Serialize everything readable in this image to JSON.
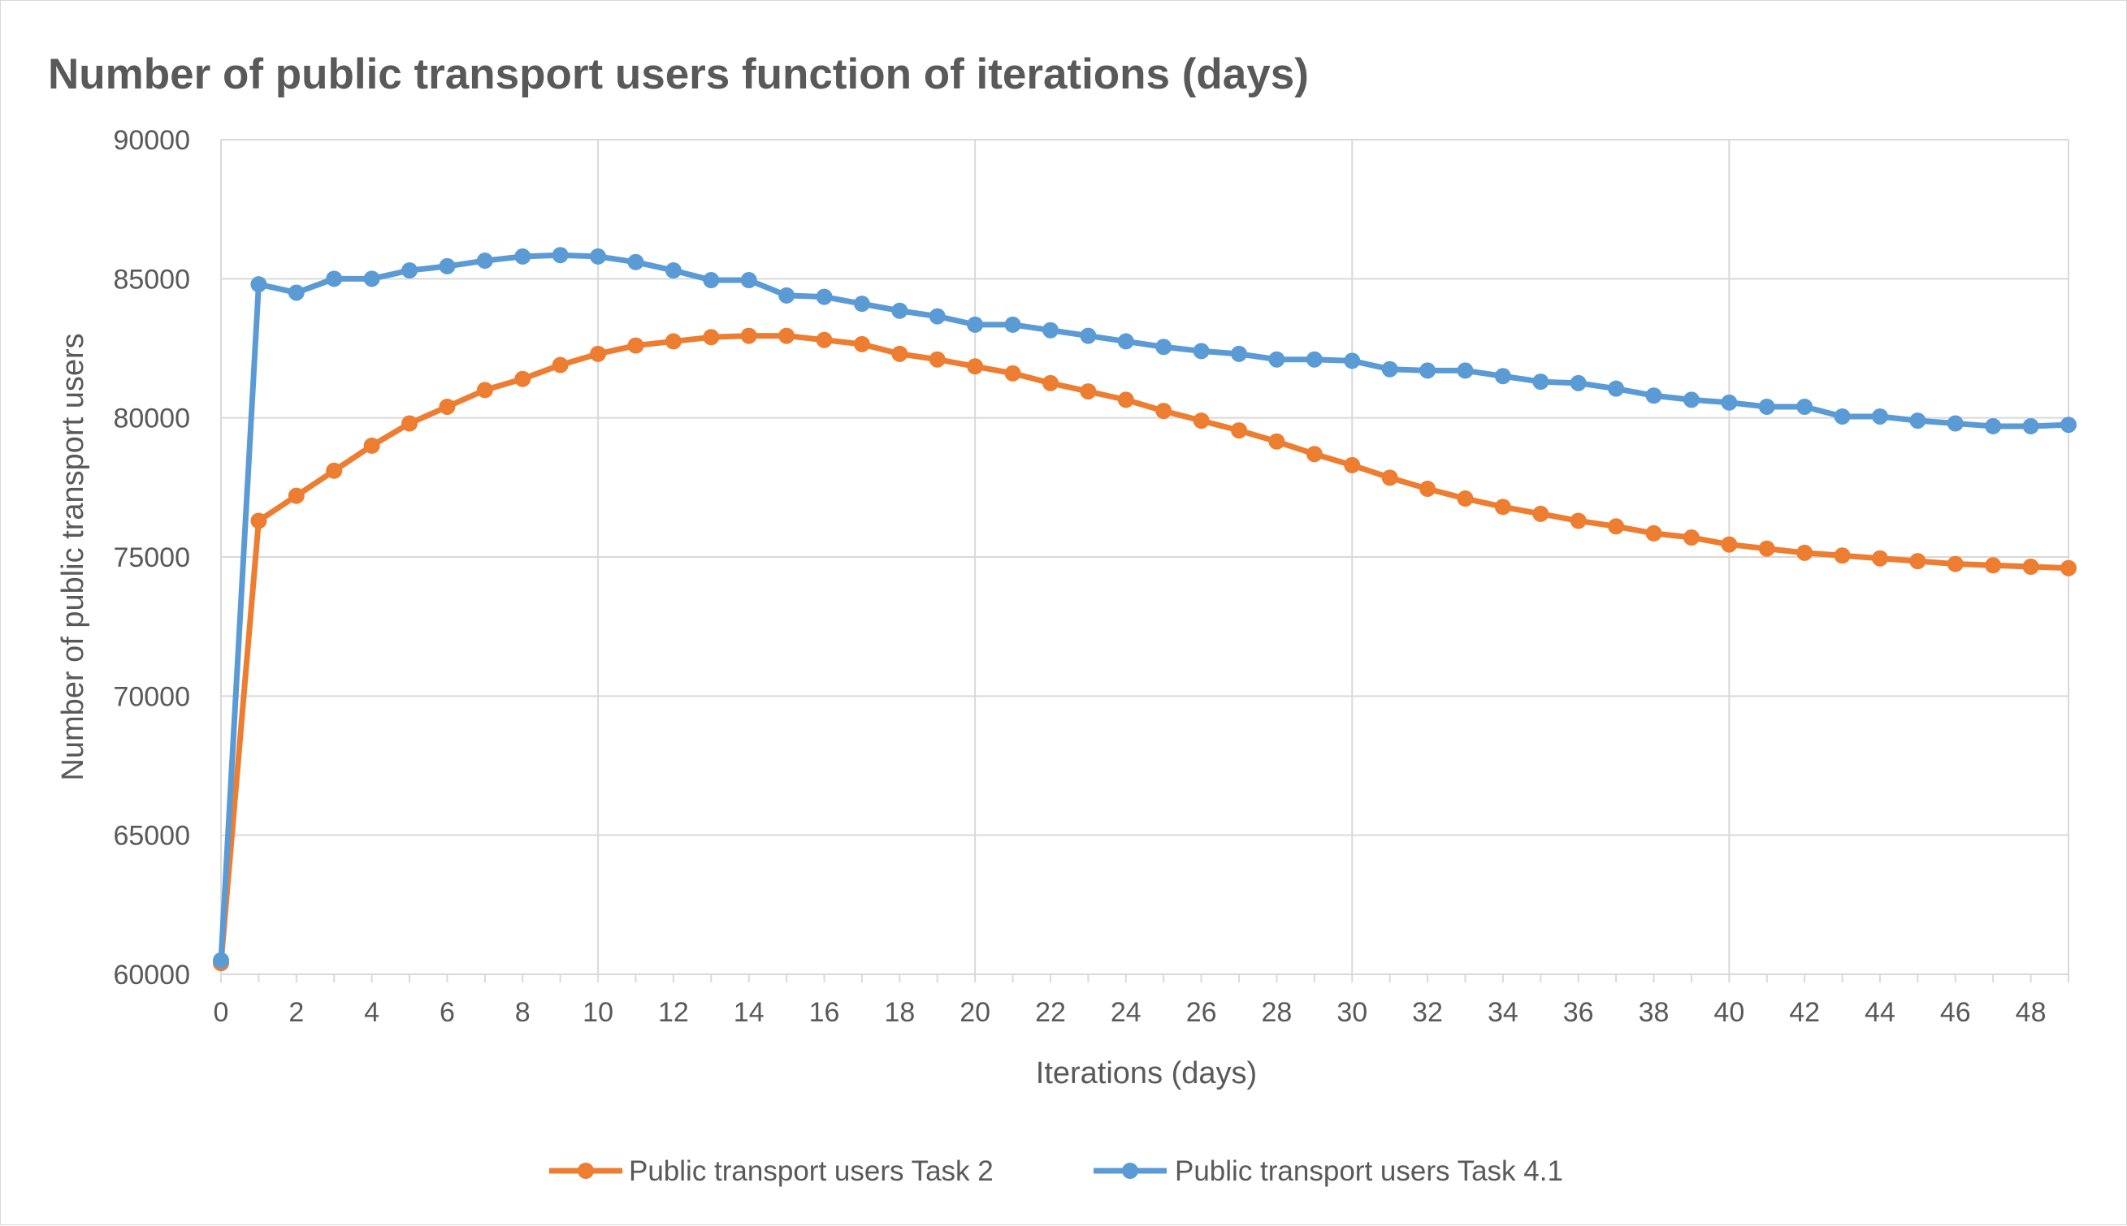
{
  "chart_data": {
    "type": "line",
    "title": "Number of public transport users function of iterations (days)",
    "xlabel": "Iterations (days)",
    "ylabel": "Number of public transport users",
    "xlim": [
      0,
      49
    ],
    "ylim": [
      60000,
      90000
    ],
    "xticks": [
      "0",
      "2",
      "4",
      "6",
      "8",
      "10",
      "12",
      "14",
      "16",
      "18",
      "20",
      "22",
      "24",
      "26",
      "28",
      "30",
      "32",
      "34",
      "36",
      "38",
      "40",
      "42",
      "44",
      "46",
      "48"
    ],
    "yticks": [
      "60000",
      "65000",
      "70000",
      "75000",
      "80000",
      "85000",
      "90000"
    ],
    "grid": true,
    "legend_position": "bottom",
    "x": [
      0,
      1,
      2,
      3,
      4,
      5,
      6,
      7,
      8,
      9,
      10,
      11,
      12,
      13,
      14,
      15,
      16,
      17,
      18,
      19,
      20,
      21,
      22,
      23,
      24,
      25,
      26,
      27,
      28,
      29,
      30,
      31,
      32,
      33,
      34,
      35,
      36,
      37,
      38,
      39,
      40,
      41,
      42,
      43,
      44,
      45,
      46,
      47,
      48,
      49
    ],
    "series": [
      {
        "name": "Public transport users Task 2",
        "color": "#ed7d31",
        "values": [
          60400,
          76300,
          77200,
          78100,
          79000,
          79800,
          80400,
          81000,
          81400,
          81900,
          82300,
          82600,
          82750,
          82900,
          82950,
          82950,
          82800,
          82650,
          82300,
          82100,
          81850,
          81600,
          81250,
          80950,
          80650,
          80250,
          79900,
          79550,
          79150,
          78700,
          78300,
          77850,
          77450,
          77100,
          76800,
          76550,
          76300,
          76100,
          75850,
          75700,
          75450,
          75300,
          75150,
          75050,
          74950,
          74850,
          74750,
          74700,
          74650,
          74600
        ]
      },
      {
        "name": "Public transport users Task 4.1",
        "color": "#5b9bd5",
        "values": [
          60500,
          84800,
          84500,
          85000,
          85000,
          85300,
          85450,
          85650,
          85800,
          85850,
          85800,
          85600,
          85300,
          84950,
          84950,
          84400,
          84350,
          84100,
          83850,
          83650,
          83350,
          83350,
          83150,
          82950,
          82750,
          82550,
          82400,
          82300,
          82100,
          82100,
          82050,
          81750,
          81700,
          81700,
          81500,
          81300,
          81250,
          81050,
          80800,
          80650,
          80550,
          80400,
          80400,
          80050,
          80050,
          79900,
          79800,
          79700,
          79700,
          79750
        ]
      }
    ]
  }
}
